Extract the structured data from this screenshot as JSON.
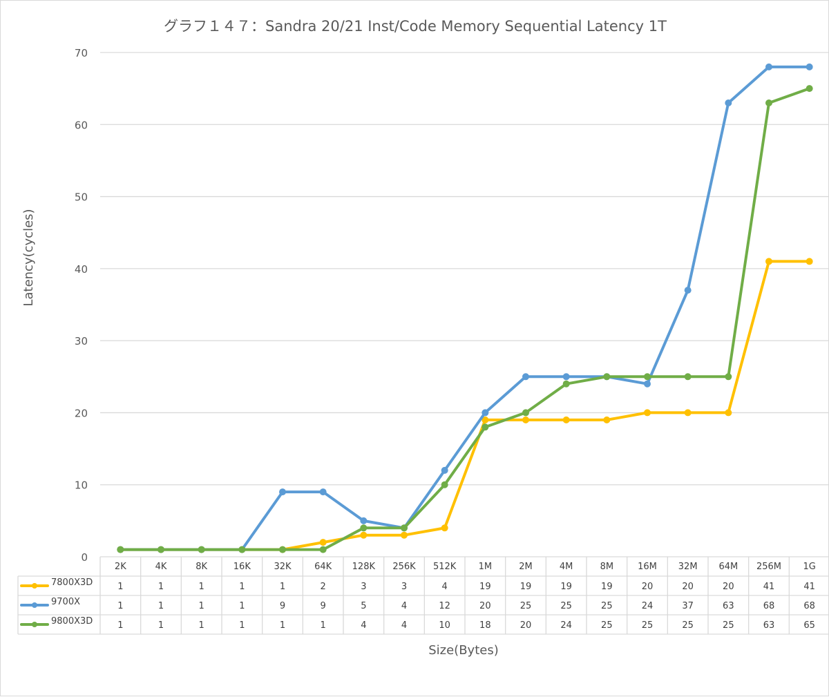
{
  "chart_data": {
    "type": "line",
    "title": "グラフ１４７：Sandra 20/21 Inst/Code Memory Sequential Latency 1T",
    "xlabel": "Size(Bytes)",
    "ylabel": "Latency(cycles)",
    "ylim": [
      0,
      70
    ],
    "yticks": [
      0,
      10,
      20,
      30,
      40,
      50,
      60,
      70
    ],
    "grid": true,
    "legend": "data-table",
    "categories": [
      "2K",
      "4K",
      "8K",
      "16K",
      "32K",
      "64K",
      "128K",
      "256K",
      "512K",
      "1M",
      "2M",
      "4M",
      "8M",
      "16M",
      "32M",
      "64M",
      "256M",
      "1G"
    ],
    "series": [
      {
        "name": "7800X3D",
        "color": "#ffc000",
        "values": [
          1,
          1,
          1,
          1,
          1,
          2,
          3,
          3,
          4,
          19,
          19,
          19,
          19,
          20,
          20,
          20,
          41,
          41
        ]
      },
      {
        "name": "9700X",
        "color": "#5b9bd5",
        "values": [
          1,
          1,
          1,
          1,
          9,
          9,
          5,
          4,
          12,
          20,
          25,
          25,
          25,
          24,
          37,
          63,
          68,
          68
        ]
      },
      {
        "name": "9800X3D",
        "color": "#70ad47",
        "values": [
          1,
          1,
          1,
          1,
          1,
          1,
          4,
          4,
          10,
          18,
          20,
          24,
          25,
          25,
          25,
          25,
          63,
          65
        ]
      }
    ]
  }
}
